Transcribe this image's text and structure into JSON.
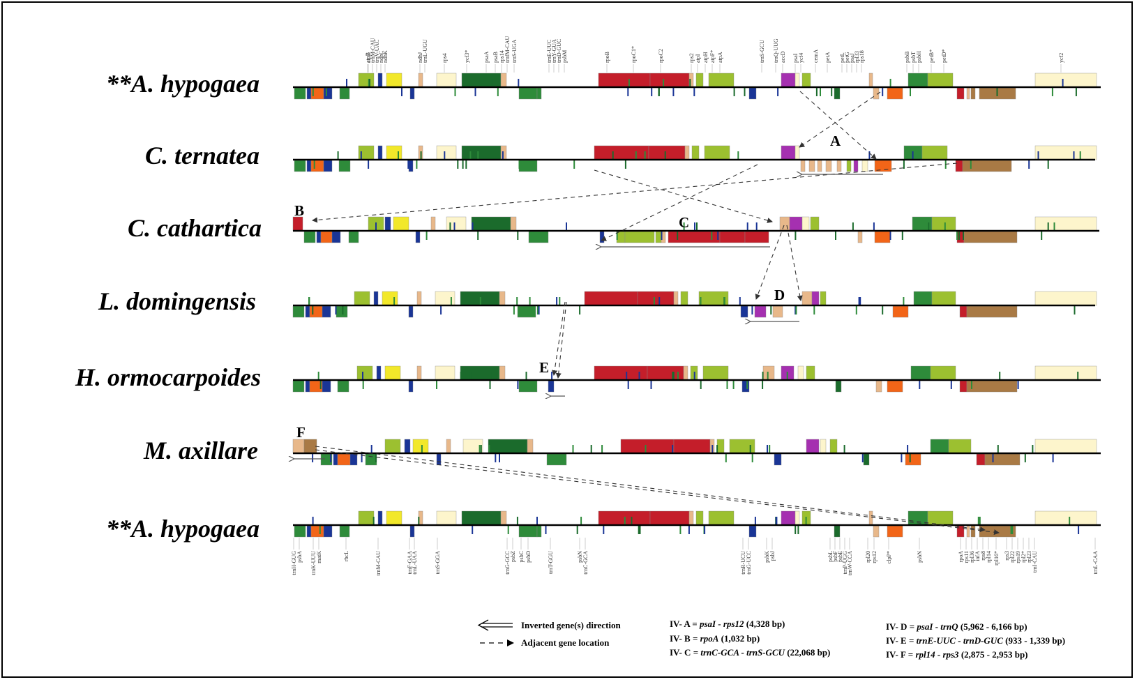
{
  "palette": {
    "red": "#c41e2a",
    "dkgreen": "#1b6b2c",
    "green": "#2e8b3a",
    "ltgreen": "#9cc030",
    "yellow": "#f2e82a",
    "tan": "#e8b88a",
    "cream": "#fdf5cc",
    "navy": "#1a3596",
    "orange": "#f26518",
    "purple": "#a530b0",
    "brown": "#a97a45",
    "arrow": "#555555"
  },
  "species": [
    {
      "name": "**A. hypogaea"
    },
    {
      "name": "C. ternatea"
    },
    {
      "name": "C. cathartica"
    },
    {
      "name": "L. domingensis"
    },
    {
      "name": "H. ormocarpoides"
    },
    {
      "name": "M. axillare"
    },
    {
      "name": "**A. hypogaea"
    }
  ],
  "top_gene_labels": [
    "atpB",
    "atpE",
    "trnM-CAU",
    "trnV-UAC",
    "ndhC",
    "ndhK",
    "ndhJ",
    "trnL-UGU",
    "rps4",
    "ycf3*",
    "psaA",
    "psaB",
    "rps14",
    "trnfM-CAU",
    "trnS-UGA",
    "trnE-UUC",
    "trnY-GUA",
    "trnD-GUC",
    "psbM",
    "rpoB",
    "rpoC1*",
    "rpoC2",
    "rps2",
    "atpI",
    "atpH",
    "atpF*",
    "atpA",
    "trnS-GCU",
    "trnQ-UUG",
    "accD",
    "psaI",
    "ycf4",
    "cemA",
    "petA",
    "petL",
    "petG",
    "psaJ",
    "rpl33",
    "rps18",
    "psbB",
    "psbT",
    "psbH",
    "petB*",
    "petD*",
    "ycf2"
  ],
  "bottom_gene_labels": [
    "trnH-GUG",
    "psbA",
    "trnK-UUU",
    "matK",
    "rbcL",
    "trnM-CAU",
    "trnF-GAA",
    "trnL-UAA",
    "trnS-GGA",
    "trnG-GCC",
    "psbZ",
    "psbC",
    "psbD",
    "trnT-GGU",
    "psbN",
    "trnC-GCA",
    "trnR-UCU",
    "trnG-UCC",
    "psbK",
    "psbJ",
    "psbL",
    "psbF",
    "psbE",
    "trnP-UGG",
    "trnW-CCA",
    "rpl20",
    "rps12",
    "clpP*",
    "psbN",
    "rpoA",
    "rps11",
    "rpl36",
    "infA",
    "rps8",
    "rpl14",
    "rpl16*",
    "rps3",
    "rpl22",
    "rps19",
    "rpl2*",
    "rpl23",
    "trnI-CAU",
    "trnL-CAA"
  ],
  "annotation_letters": [
    "A",
    "B",
    "C",
    "D",
    "E",
    "F"
  ],
  "legend": {
    "inverted_label": "Inverted gene(s) direction",
    "adjacent_label": "Adjacent gene location",
    "items": [
      {
        "code": "IV- A = ",
        "genes": "psaI - rps12",
        "size": " (4,328 bp)"
      },
      {
        "code": "IV- B = ",
        "genes": "rpoA",
        "size": " (1,032 bp)"
      },
      {
        "code": "IV- C = ",
        "genes": "trnC-GCA - trnS-GCU",
        "size": " (22,068 bp)"
      },
      {
        "code": "IV- D = ",
        "genes": "psaI - trnQ",
        "size": " (5,962 - 6,166 bp)"
      },
      {
        "code": "IV- E = ",
        "genes": "trnE-UUC - trnD-GUC",
        "size": " (933 - 1,339 bp)"
      },
      {
        "code": "IV- F = ",
        "genes": "rpl14 - rps3",
        "size": " (2,875 - 2,953 bp)"
      }
    ]
  }
}
